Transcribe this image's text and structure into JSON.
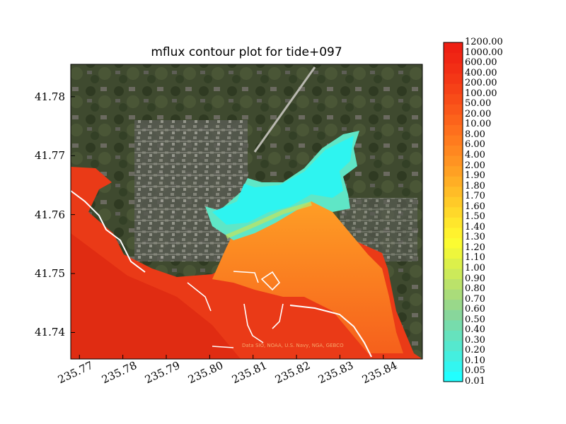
{
  "chart_data": {
    "type": "heatmap",
    "title": "mflux contour plot for tide+097",
    "xlabel": "",
    "ylabel": "",
    "xlim": [
      235.768,
      235.849
    ],
    "ylim": [
      41.7355,
      41.7855
    ],
    "x_ticks": [
      "235.77",
      "235.78",
      "235.79",
      "235.80",
      "235.81",
      "235.82",
      "235.83",
      "235.84"
    ],
    "y_ticks": [
      "41.74",
      "41.75",
      "41.76",
      "41.77",
      "41.78"
    ],
    "colorbar_levels": [
      "0.01",
      "0.05",
      "0.10",
      "0.20",
      "0.30",
      "0.40",
      "0.50",
      "0.60",
      "0.70",
      "0.80",
      "0.90",
      "1.00",
      "1.10",
      "1.20",
      "1.30",
      "1.40",
      "1.50",
      "1.60",
      "1.70",
      "1.80",
      "1.90",
      "2.00",
      "4.00",
      "6.00",
      "8.00",
      "10.00",
      "20.00",
      "50.00",
      "100.00",
      "200.00",
      "400.00",
      "600.00",
      "1000.00",
      "1200.00"
    ],
    "colorbar_colors": [
      "#22ffff",
      "#33f6f0",
      "#44efdf",
      "#55e8ce",
      "#66e2bd",
      "#77dcac",
      "#88d69b",
      "#99d88a",
      "#aadc7a",
      "#bbe26a",
      "#ccea5a",
      "#dcf04a",
      "#eef63c",
      "#fbfb32",
      "#fff22e",
      "#ffe62c",
      "#ffd82a",
      "#ffca28",
      "#ffbc27",
      "#ffae25",
      "#ffa023",
      "#ff9322",
      "#ff8720",
      "#ff7b1e",
      "#fe6f1d",
      "#fc631b",
      "#fa571a",
      "#f84c18",
      "#f64117",
      "#f43716",
      "#f22e15",
      "#f02614",
      "#ee2013"
    ],
    "background": "satellite imagery",
    "credit": "Data SIO, NOAA, U.S. Navy, NGA, GEBCO",
    "grid": false
  }
}
